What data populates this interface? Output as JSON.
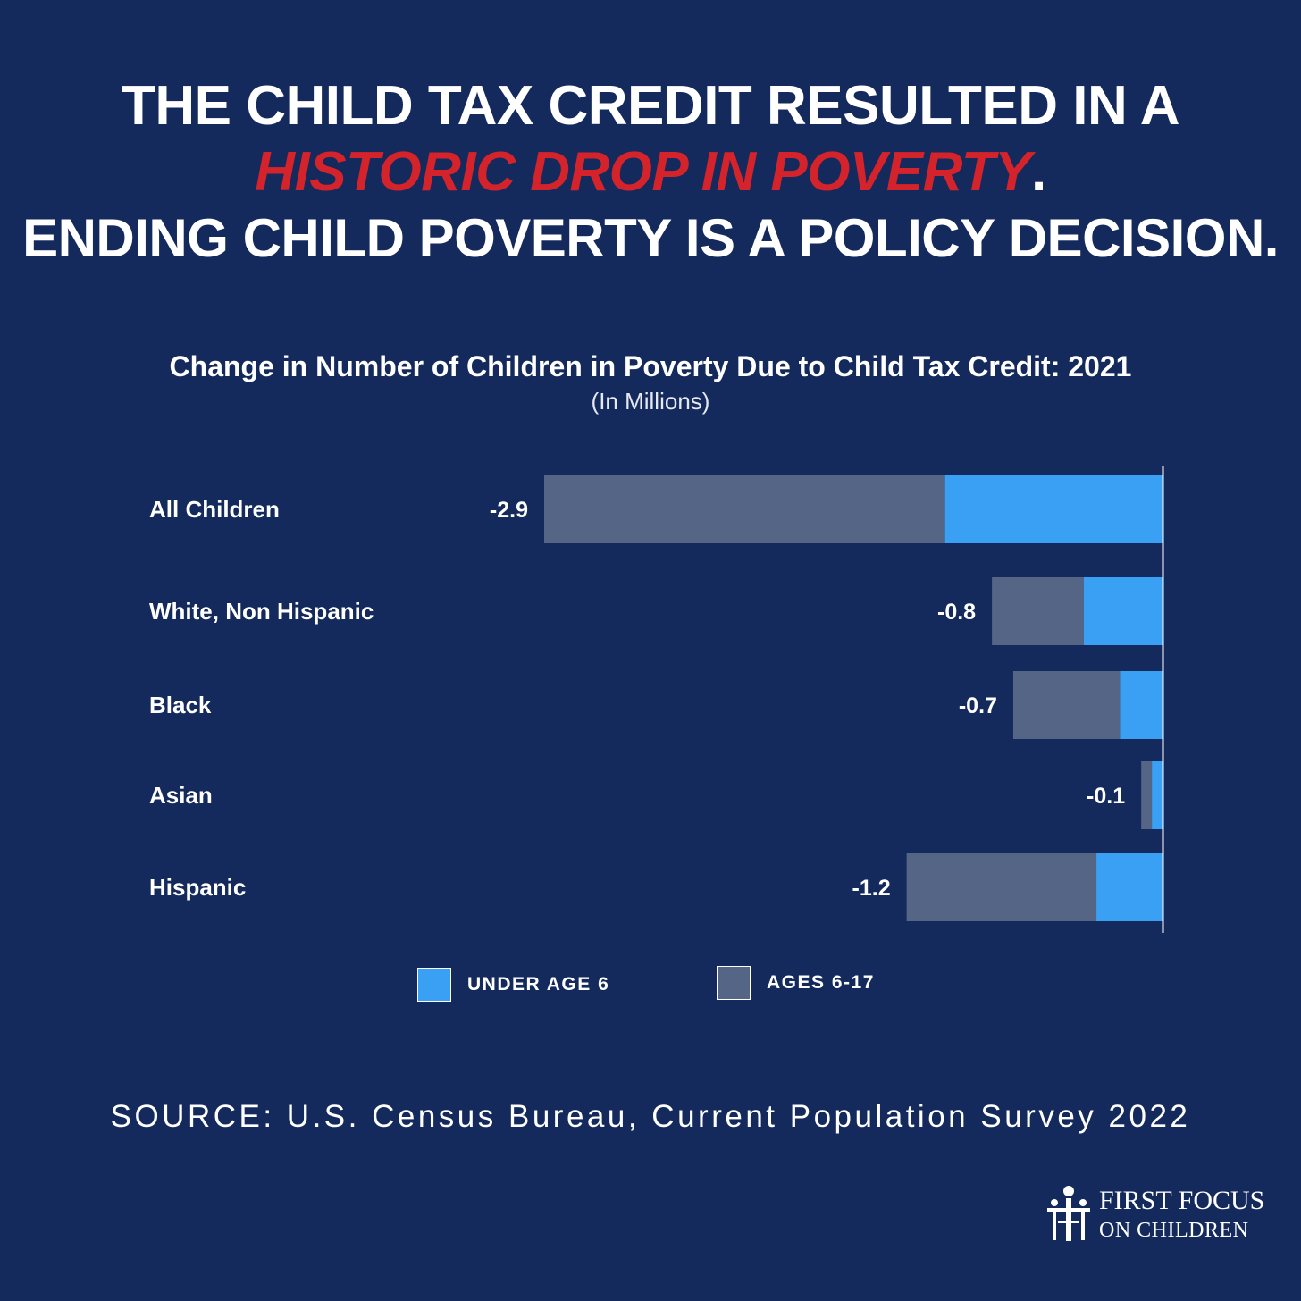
{
  "headline": {
    "line1": "THE CHILD TAX CREDIT RESULTED IN A",
    "line2_highlight": "HISTORIC DROP IN POVERTY",
    "line2_suffix": ".",
    "line3": "ENDING CHILD POVERTY IS A POLICY DECISION."
  },
  "colors": {
    "background": "#142a5c",
    "under6": "#3aa0f3",
    "ages6to17": "#546586",
    "highlight": "#d5232c"
  },
  "chart_data": {
    "type": "bar",
    "orientation": "horizontal",
    "stacked": true,
    "title": "Change in Number of Children in Poverty Due to Child Tax Credit: 2021",
    "subtitle": "(In Millions)",
    "categories": [
      "All Children",
      "White, Non Hispanic",
      "Black",
      "Asian",
      "Hispanic"
    ],
    "totals": [
      -2.9,
      -0.8,
      -0.7,
      -0.1,
      -1.2
    ],
    "total_labels": [
      "-2.9",
      "-0.8",
      "-0.7",
      "-0.1",
      "-1.2"
    ],
    "series": [
      {
        "name": "UNDER AGE 6",
        "values": [
          -1.02,
          -0.37,
          -0.2,
          -0.05,
          -0.31
        ],
        "color": "#3aa0f3"
      },
      {
        "name": "AGES 6-17",
        "values": [
          -1.88,
          -0.43,
          -0.5,
          -0.05,
          -0.89
        ],
        "color": "#546586"
      }
    ],
    "xlim": [
      -4.6,
      0
    ],
    "legend_position": "bottom"
  },
  "source": "SOURCE: U.S. Census Bureau, Current Population Survey 2022",
  "logo": {
    "line1": "FIRST FOCUS",
    "line2": "ON CHILDREN"
  }
}
